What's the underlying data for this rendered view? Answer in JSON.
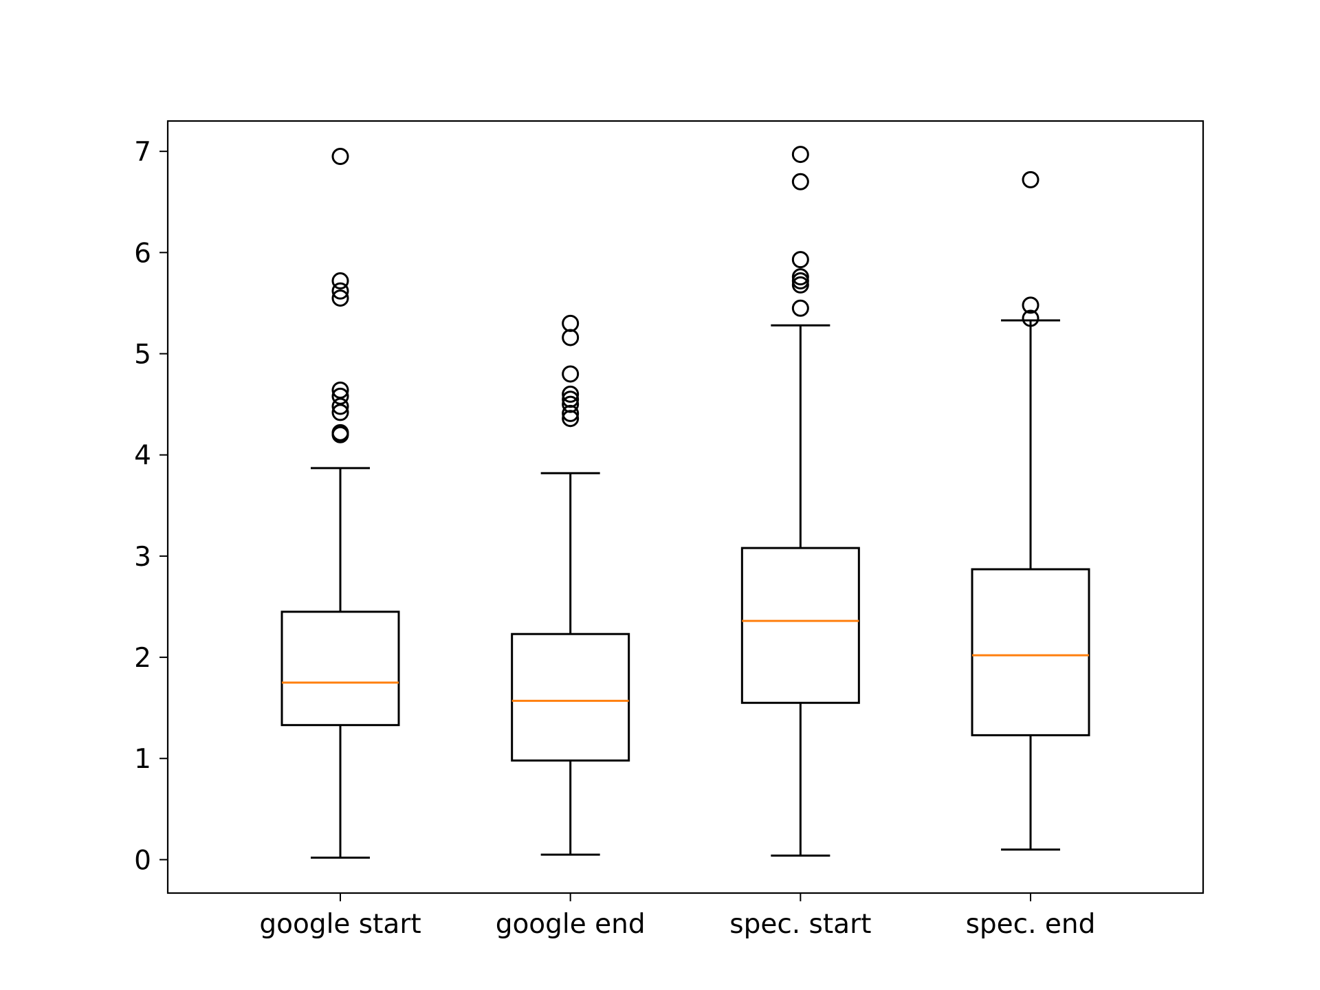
{
  "chart_data": {
    "type": "boxplot",
    "title": "",
    "xlabel": "",
    "ylabel": "",
    "categories": [
      "google start",
      "google end",
      "spec. start",
      "spec. end"
    ],
    "ylim": [
      -0.33,
      7.3
    ],
    "y_ticks": [
      "0",
      "1",
      "2",
      "3",
      "4",
      "5",
      "6",
      "7"
    ],
    "grid": false,
    "colors": {
      "box": "#000000",
      "median": "#ff7f0e"
    },
    "boxes": [
      {
        "name": "google start",
        "whisker_low": 0.02,
        "q1": 1.33,
        "median": 1.75,
        "q3": 2.45,
        "whisker_high": 3.87,
        "outliers": [
          4.2,
          4.22,
          4.42,
          4.48,
          4.58,
          4.64,
          5.55,
          5.62,
          5.72,
          6.95
        ]
      },
      {
        "name": "google end",
        "whisker_low": 0.05,
        "q1": 0.98,
        "median": 1.57,
        "q3": 2.23,
        "whisker_high": 3.82,
        "outliers": [
          4.36,
          4.41,
          4.5,
          4.55,
          4.6,
          4.8,
          5.16,
          5.3
        ]
      },
      {
        "name": "spec. start",
        "whisker_low": 0.04,
        "q1": 1.55,
        "median": 2.36,
        "q3": 3.08,
        "whisker_high": 5.28,
        "outliers": [
          5.45,
          5.68,
          5.72,
          5.76,
          5.93,
          6.7,
          6.97
        ]
      },
      {
        "name": "spec. end",
        "whisker_low": 0.1,
        "q1": 1.23,
        "median": 2.02,
        "q3": 2.87,
        "whisker_high": 5.33,
        "outliers": [
          5.35,
          5.48,
          6.72
        ]
      }
    ]
  }
}
